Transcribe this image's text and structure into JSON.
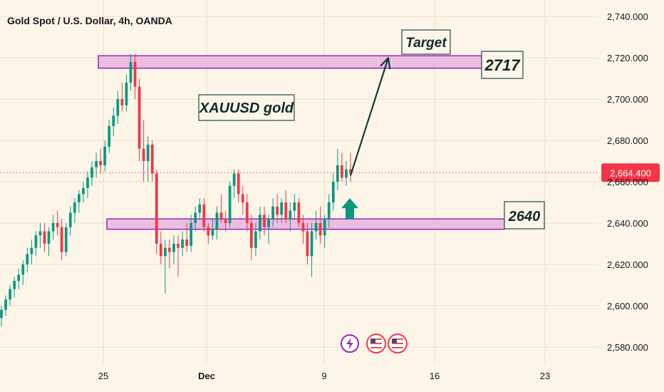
{
  "chart_data": {
    "type": "candlestick",
    "title": "Gold Spot / U.S. Dollar, 4h, OANDA",
    "y_axis": {
      "ticks": [
        2580,
        2600,
        2620,
        2640,
        2660,
        2680,
        2700,
        2720,
        2740
      ],
      "tick_labels": [
        "2,580.000",
        "2,600.000",
        "2,620.000",
        "2,640.000",
        "2,660.000",
        "2,680.000",
        "2,700.000",
        "2,720.000",
        "2,740.000"
      ],
      "range": [
        2572,
        2748
      ],
      "position": "right"
    },
    "x_axis": {
      "tick_labels": [
        "25",
        "Dec",
        "9",
        "16",
        "23"
      ]
    },
    "last_price": {
      "value": 2664.4,
      "label": "2,664.400",
      "color": "#f23645"
    },
    "zones": [
      {
        "label": "2717",
        "low": 2715,
        "high": 2721
      },
      {
        "label": "2640",
        "low": 2637,
        "high": 2642
      }
    ],
    "annotations": [
      {
        "text": "Target"
      },
      {
        "text": "XAUUSD gold"
      }
    ],
    "colors": {
      "up": "#089981",
      "down": "#f23645",
      "zone_fill": "#e8b4e0",
      "zone_border": "#9c27b0",
      "arrow": "#0d3b3b",
      "up_arrow": "#089981",
      "background": "#fdf6e8"
    },
    "icons": [
      "lightning-icon",
      "us-flag-icon",
      "us-flag-icon"
    ],
    "candles_ohlc": [
      [
        2594,
        2600,
        2590,
        2598
      ],
      [
        2598,
        2605,
        2595,
        2603
      ],
      [
        2603,
        2610,
        2600,
        2608
      ],
      [
        2608,
        2614,
        2604,
        2612
      ],
      [
        2612,
        2618,
        2608,
        2615
      ],
      [
        2615,
        2622,
        2610,
        2620
      ],
      [
        2620,
        2628,
        2616,
        2625
      ],
      [
        2625,
        2632,
        2620,
        2628
      ],
      [
        2628,
        2636,
        2624,
        2634
      ],
      [
        2634,
        2640,
        2628,
        2636
      ],
      [
        2636,
        2640,
        2626,
        2630
      ],
      [
        2630,
        2638,
        2624,
        2636
      ],
      [
        2636,
        2644,
        2632,
        2640
      ],
      [
        2640,
        2646,
        2634,
        2638
      ],
      [
        2638,
        2642,
        2622,
        2626
      ],
      [
        2626,
        2640,
        2624,
        2638
      ],
      [
        2638,
        2648,
        2634,
        2645
      ],
      [
        2645,
        2652,
        2640,
        2650
      ],
      [
        2650,
        2656,
        2645,
        2654
      ],
      [
        2654,
        2660,
        2650,
        2657
      ],
      [
        2657,
        2665,
        2652,
        2662
      ],
      [
        2662,
        2670,
        2658,
        2667
      ],
      [
        2667,
        2674,
        2662,
        2670
      ],
      [
        2670,
        2676,
        2664,
        2668
      ],
      [
        2668,
        2680,
        2665,
        2677
      ],
      [
        2677,
        2690,
        2674,
        2687
      ],
      [
        2687,
        2696,
        2682,
        2692
      ],
      [
        2692,
        2704,
        2688,
        2700
      ],
      [
        2700,
        2708,
        2694,
        2697
      ],
      [
        2697,
        2712,
        2694,
        2708
      ],
      [
        2708,
        2722,
        2704,
        2718
      ],
      [
        2718,
        2722,
        2700,
        2706
      ],
      [
        2706,
        2710,
        2670,
        2676
      ],
      [
        2676,
        2690,
        2660,
        2670
      ],
      [
        2670,
        2682,
        2660,
        2678
      ],
      [
        2678,
        2680,
        2660,
        2664
      ],
      [
        2664,
        2666,
        2625,
        2630
      ],
      [
        2630,
        2636,
        2620,
        2624
      ],
      [
        2624,
        2632,
        2606,
        2628
      ],
      [
        2628,
        2632,
        2618,
        2626
      ],
      [
        2626,
        2634,
        2620,
        2630
      ],
      [
        2630,
        2634,
        2614,
        2628
      ],
      [
        2628,
        2636,
        2624,
        2632
      ],
      [
        2632,
        2640,
        2626,
        2629
      ],
      [
        2629,
        2644,
        2626,
        2640
      ],
      [
        2640,
        2648,
        2636,
        2645
      ],
      [
        2645,
        2652,
        2642,
        2649
      ],
      [
        2649,
        2652,
        2636,
        2638
      ],
      [
        2638,
        2640,
        2630,
        2634
      ],
      [
        2634,
        2642,
        2632,
        2637
      ],
      [
        2637,
        2648,
        2632,
        2645
      ],
      [
        2645,
        2654,
        2640,
        2642
      ],
      [
        2642,
        2646,
        2636,
        2640
      ],
      [
        2640,
        2660,
        2638,
        2658
      ],
      [
        2658,
        2666,
        2652,
        2664
      ],
      [
        2664,
        2666,
        2650,
        2654
      ],
      [
        2654,
        2658,
        2644,
        2650
      ],
      [
        2650,
        2654,
        2636,
        2640
      ],
      [
        2640,
        2644,
        2622,
        2628
      ],
      [
        2628,
        2640,
        2624,
        2636
      ],
      [
        2636,
        2648,
        2632,
        2644
      ],
      [
        2644,
        2648,
        2634,
        2638
      ],
      [
        2638,
        2644,
        2630,
        2642
      ],
      [
        2642,
        2652,
        2638,
        2648
      ],
      [
        2648,
        2654,
        2640,
        2644
      ],
      [
        2644,
        2652,
        2640,
        2650
      ],
      [
        2650,
        2656,
        2640,
        2642
      ],
      [
        2642,
        2650,
        2636,
        2646
      ],
      [
        2646,
        2654,
        2642,
        2650
      ],
      [
        2650,
        2652,
        2638,
        2640
      ],
      [
        2640,
        2644,
        2630,
        2636
      ],
      [
        2636,
        2640,
        2620,
        2624
      ],
      [
        2624,
        2640,
        2614,
        2636
      ],
      [
        2636,
        2646,
        2632,
        2640
      ],
      [
        2640,
        2648,
        2630,
        2634
      ],
      [
        2634,
        2644,
        2628,
        2642
      ],
      [
        2642,
        2654,
        2638,
        2650
      ],
      [
        2650,
        2664,
        2646,
        2660
      ],
      [
        2660,
        2676,
        2656,
        2668
      ],
      [
        2668,
        2674,
        2660,
        2662
      ],
      [
        2662,
        2670,
        2658,
        2666
      ],
      [
        2666,
        2674,
        2660,
        2664
      ]
    ]
  }
}
